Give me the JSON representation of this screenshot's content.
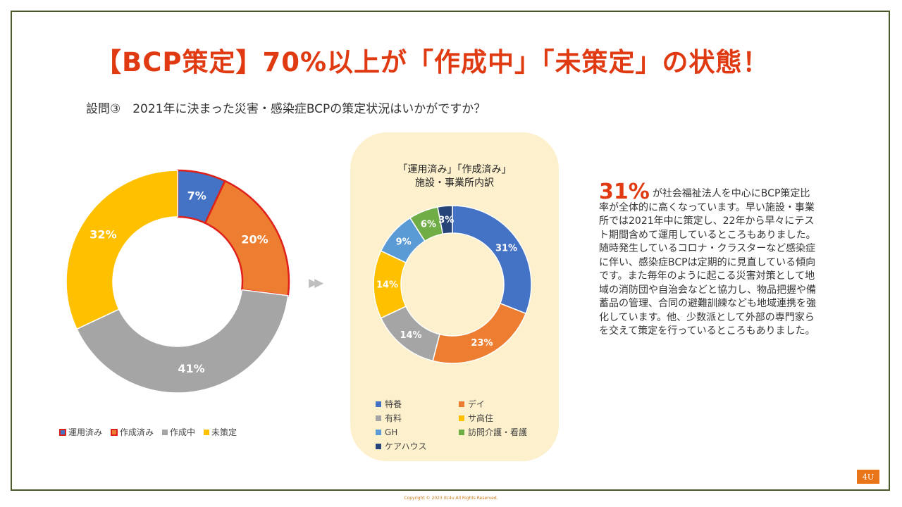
{
  "title": "【BCP策定】70%以上が「作成中」「未策定」の状態！",
  "question": "設問③　2021年に決まった災害・感染症BCPの策定状況はいかがですか？",
  "arrow": "▶▶",
  "panel": {
    "title_line1": "「運用済み」「作成済み」",
    "title_line2": "施設・事業所内訳"
  },
  "side_text": {
    "highlight": "31%",
    "body": "が社会福祉法人を中心にBCP策定比率が全体的に高くなっています。早い施設・事業所では2021年中に策定し、22年から早々にテスト期間含めて運用しているところもありました。随時発生しているコロナ・クラスターなど感染症に伴い、感染症BCPは定期的に見直している傾向です。また毎年のように起こる災害対策として地域の消防団や自治会などと協力し、物品把握や備蓄品の管理、合同の避難訓練なども地域連携を強化しています。他、少数派として外部の専門家らを交えて策定を行っているところもありました。"
  },
  "page_number": "4U",
  "copyright": "Copyright © 2023 itc4u All Rights Reserved.",
  "chart_data": [
    {
      "type": "pie",
      "variant": "donut",
      "title": "",
      "categories": [
        "運用済み",
        "作成済み",
        "作成中",
        "未策定"
      ],
      "values": [
        7,
        20,
        41,
        32
      ],
      "labels": [
        "7%",
        "20%",
        "41%",
        "32%"
      ],
      "colors": [
        "#4472c4",
        "#ed7d31",
        "#a5a5a5",
        "#ffc000"
      ],
      "highlighted": [
        "運用済み",
        "作成済み"
      ],
      "highlight_color": "#e0201a",
      "legend_position": "bottom"
    },
    {
      "type": "pie",
      "variant": "donut",
      "title": "「運用済み」「作成済み」施設・事業所内訳",
      "categories": [
        "特養",
        "デイ",
        "有料",
        "サ高住",
        "GH",
        "訪問介護・看護",
        "ケアハウス"
      ],
      "segment_order": [
        "特養",
        "デイ",
        "有料",
        "サ高住",
        "GH",
        "訪問介護・看護",
        "ケアハウス"
      ],
      "values": [
        31,
        23,
        14,
        14,
        9,
        6,
        3
      ],
      "labels": [
        "31%",
        "23%",
        "14%",
        "14%",
        "9%",
        "6%",
        "3%"
      ],
      "colors": [
        "#4472c4",
        "#ed7d31",
        "#a5a5a5",
        "#ffc000",
        "#5b9bd5",
        "#70ad47",
        "#264478"
      ],
      "legend_position": "bottom"
    }
  ]
}
